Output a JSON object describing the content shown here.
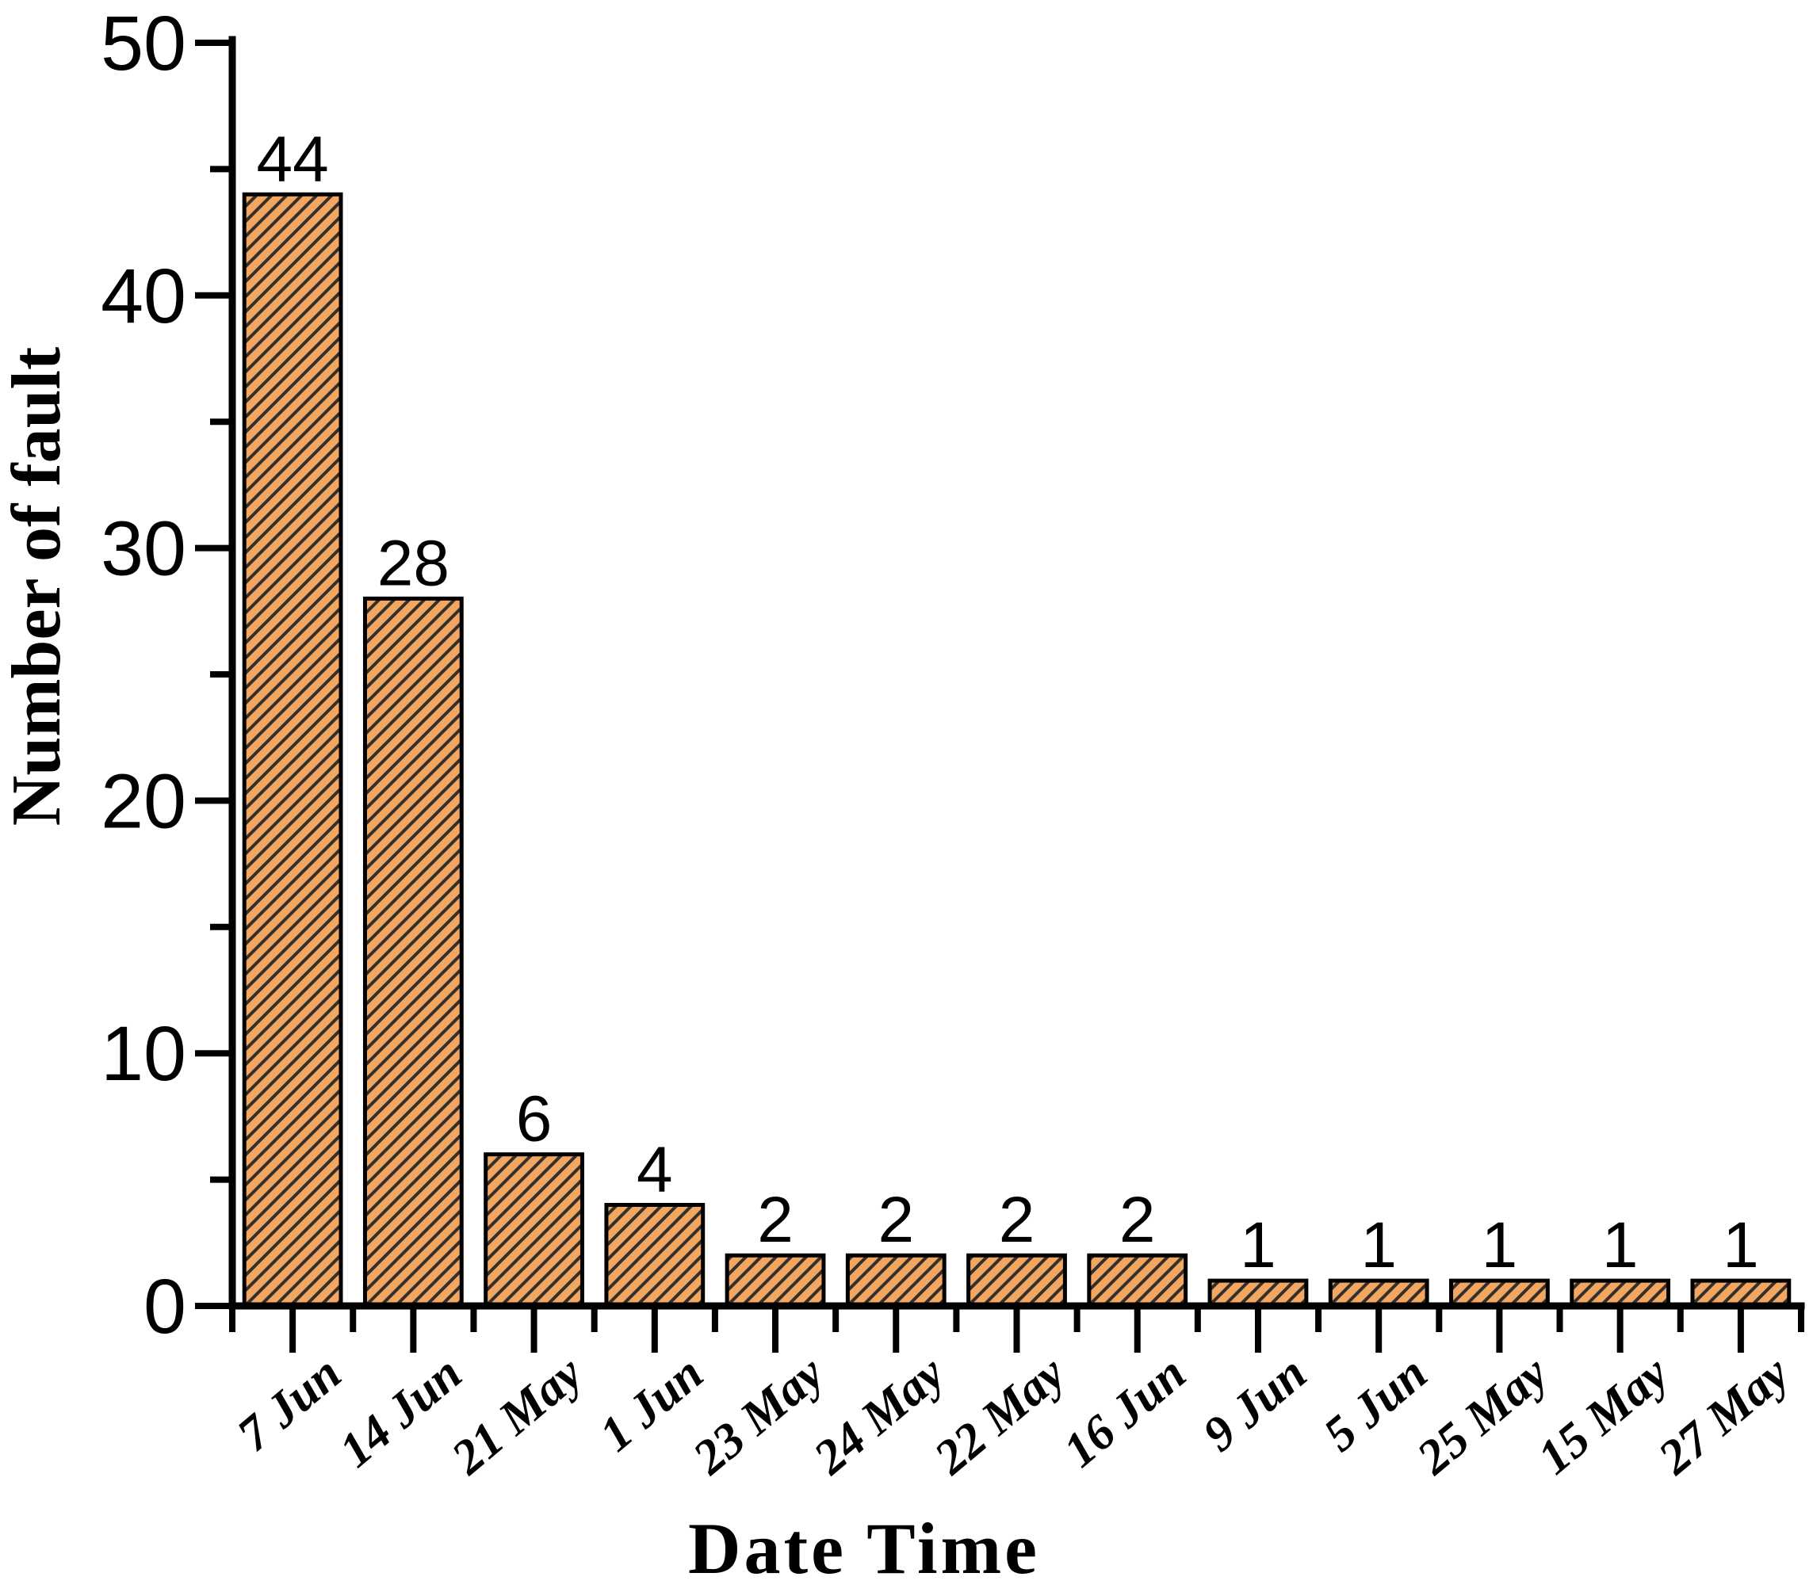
{
  "chart_data": {
    "type": "bar",
    "title": "",
    "xlabel": "Date Time",
    "ylabel": "Number of fault",
    "categories": [
      "7 Jun",
      "14 Jun",
      "21 May",
      "1 Jun",
      "23 May",
      "24 May",
      "22 May",
      "16 Jun",
      "9 Jun",
      "5 Jun",
      "25 May",
      "15 May",
      "27 May"
    ],
    "values": [
      44,
      28,
      6,
      4,
      2,
      2,
      2,
      2,
      1,
      1,
      1,
      1,
      1
    ],
    "value_labels": [
      "44",
      "28",
      "6",
      "4",
      "2",
      "2",
      "2",
      "2",
      "1",
      "1",
      "1",
      "1",
      "1"
    ],
    "ylim": [
      0,
      50
    ],
    "ytick_major": [
      0,
      10,
      20,
      30,
      40,
      50
    ],
    "ytick_minor": [
      5,
      15,
      25,
      35,
      45
    ],
    "grid": false,
    "legend_position": "none",
    "colors": {
      "bar_fill": "#F2A660",
      "hatch_line": "#33302B",
      "bar_edge": "#000000",
      "axis": "#000000",
      "text": "#000000",
      "background": "#FFFFFF"
    },
    "hatch_style": "forward-diagonal"
  }
}
